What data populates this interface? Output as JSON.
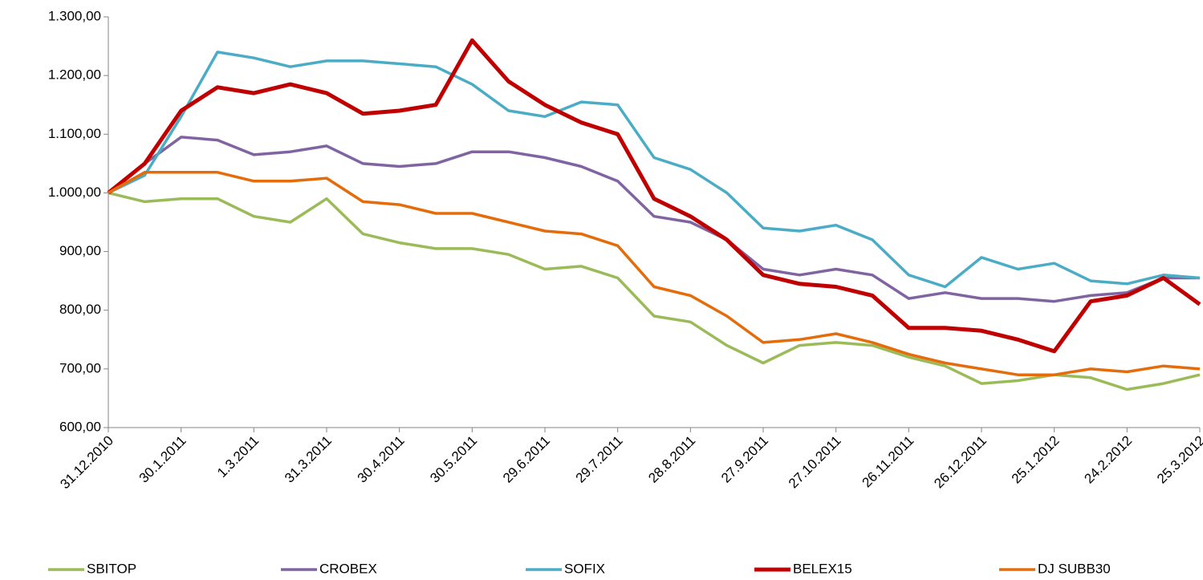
{
  "chart_data": {
    "type": "line",
    "x": [
      "31.12.2010",
      "15.1.2011",
      "30.1.2011",
      "14.2.2011",
      "1.3.2011",
      "16.3.2011",
      "31.3.2011",
      "15.4.2011",
      "30.4.2011",
      "15.5.2011",
      "30.5.2011",
      "14.6.2011",
      "29.6.2011",
      "14.7.2011",
      "29.7.2011",
      "13.8.2011",
      "28.8.2011",
      "12.9.2011",
      "27.9.2011",
      "12.10.2011",
      "27.10.2011",
      "11.11.2011",
      "26.11.2011",
      "11.12.2011",
      "26.12.2011",
      "10.1.2012",
      "25.1.2012",
      "9.2.2012",
      "24.2.2012",
      "10.3.2012",
      "25.3.2012"
    ],
    "series": [
      {
        "name": "SBITOP",
        "color": "#9bbb59",
        "values": [
          1000,
          985,
          990,
          990,
          960,
          950,
          990,
          930,
          915,
          905,
          905,
          895,
          870,
          875,
          855,
          790,
          780,
          740,
          710,
          740,
          745,
          740,
          720,
          705,
          675,
          680,
          690,
          685,
          665,
          675,
          690
        ]
      },
      {
        "name": "CROBEX",
        "color": "#8064a2",
        "values": [
          1000,
          1050,
          1095,
          1090,
          1065,
          1070,
          1080,
          1050,
          1045,
          1050,
          1070,
          1070,
          1060,
          1045,
          1020,
          960,
          950,
          920,
          870,
          860,
          870,
          860,
          820,
          830,
          820,
          820,
          815,
          825,
          830,
          855,
          855
        ]
      },
      {
        "name": "SOFIX",
        "color": "#4bacc6",
        "values": [
          1000,
          1030,
          1130,
          1240,
          1230,
          1215,
          1225,
          1225,
          1220,
          1215,
          1185,
          1140,
          1130,
          1155,
          1150,
          1060,
          1040,
          1000,
          940,
          935,
          945,
          920,
          860,
          840,
          890,
          870,
          880,
          850,
          845,
          860,
          855
        ]
      },
      {
        "name": "BELEX15",
        "color": "#c00000",
        "values": [
          1000,
          1050,
          1140,
          1180,
          1170,
          1185,
          1170,
          1135,
          1140,
          1150,
          1260,
          1190,
          1150,
          1120,
          1100,
          990,
          960,
          920,
          860,
          845,
          840,
          825,
          770,
          770,
          765,
          750,
          730,
          815,
          825,
          855,
          810
        ]
      },
      {
        "name": "DJ SUBB30",
        "color": "#e46c0a",
        "values": [
          1000,
          1035,
          1035,
          1035,
          1020,
          1020,
          1025,
          985,
          980,
          965,
          965,
          950,
          935,
          930,
          910,
          840,
          825,
          790,
          745,
          750,
          760,
          745,
          725,
          710,
          700,
          690,
          690,
          700,
          695,
          705,
          700
        ]
      }
    ],
    "xlim": [
      "31.12.2010",
      "25.3.2012"
    ],
    "xticks": [
      "31.12.2010",
      "30.1.2011",
      "1.3.2011",
      "31.3.2011",
      "30.4.2011",
      "30.5.2011",
      "29.6.2011",
      "29.7.2011",
      "28.8.2011",
      "27.9.2011",
      "27.10.2011",
      "26.11.2011",
      "26.12.2011",
      "25.1.2012",
      "24.2.2012",
      "25.3.2012"
    ],
    "ylim": [
      600,
      1300
    ],
    "yticks": [
      {
        "value": 600,
        "label": "600,00"
      },
      {
        "value": 700,
        "label": "700,00"
      },
      {
        "value": 800,
        "label": "800,00"
      },
      {
        "value": 900,
        "label": "900,00"
      },
      {
        "value": 1000,
        "label": "1.000,00"
      },
      {
        "value": 1100,
        "label": "1.100,00"
      },
      {
        "value": 1200,
        "label": "1.200,00"
      },
      {
        "value": 1300,
        "label": "1.300,00"
      }
    ],
    "legend": "bottom"
  }
}
